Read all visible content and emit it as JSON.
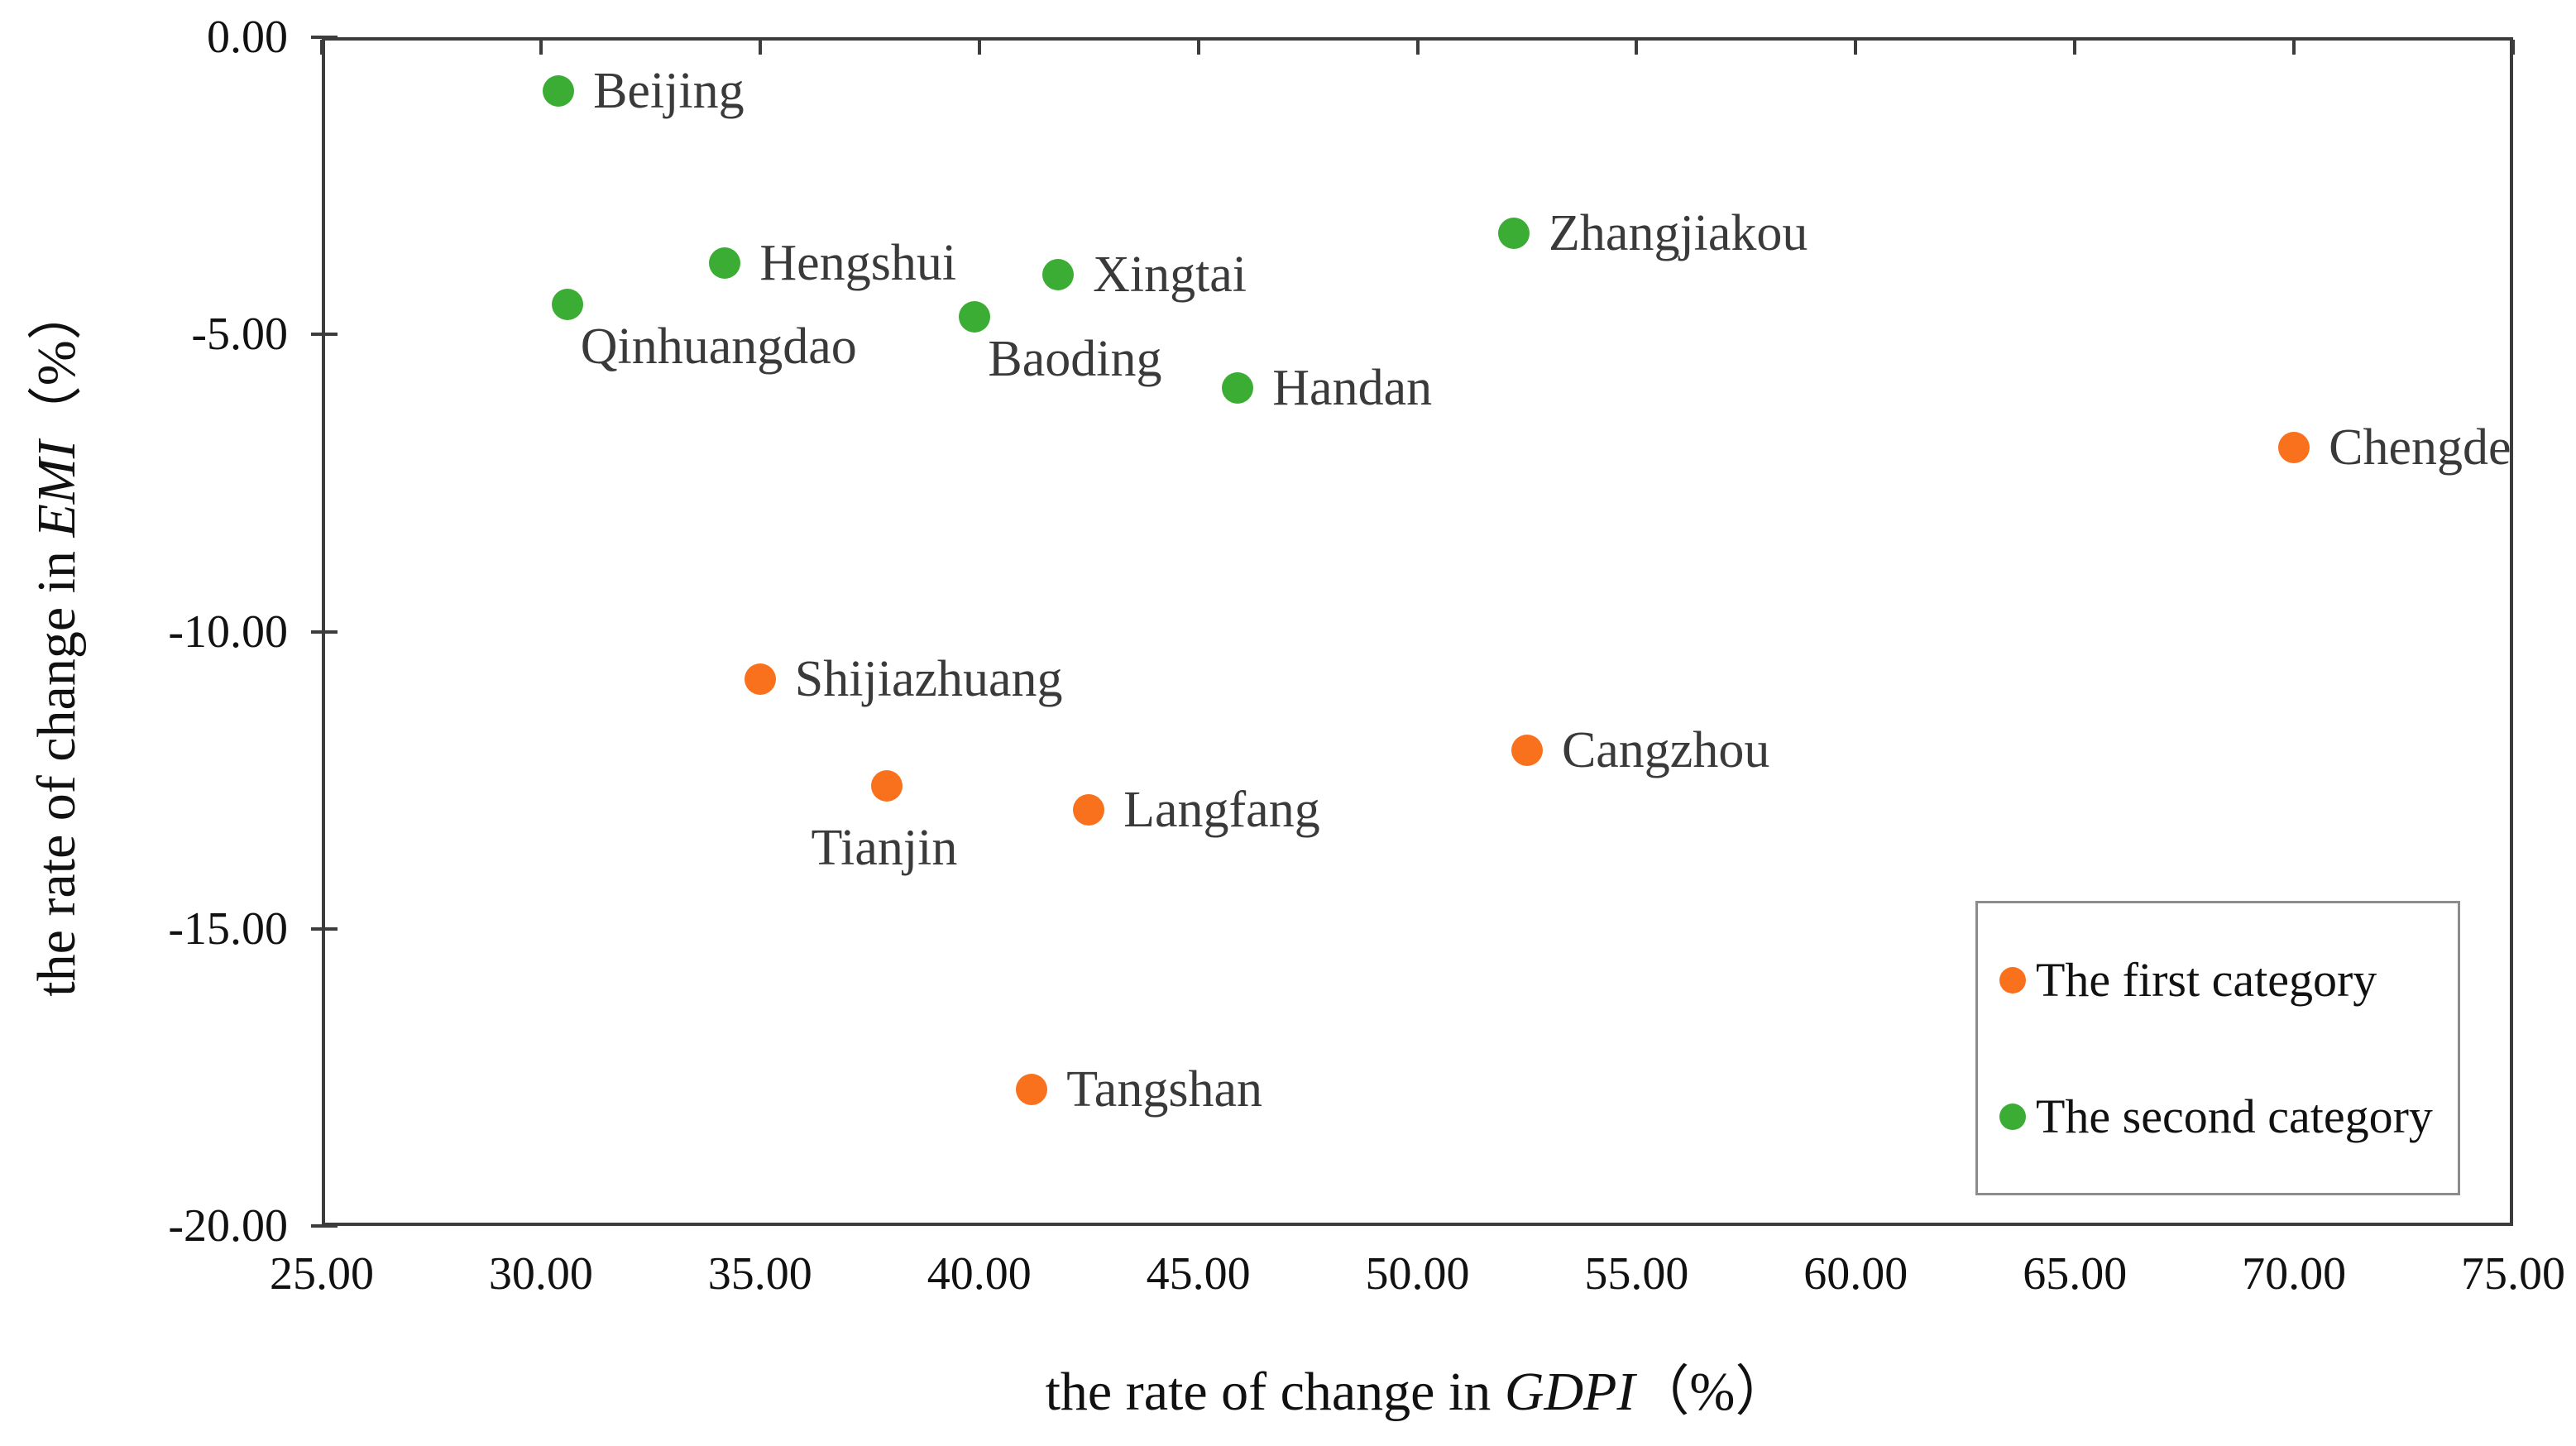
{
  "chart_data": {
    "type": "scatter",
    "title": "",
    "xlabel": {
      "pre": "the rate of change in ",
      "em": "GDPI",
      "post": "（%）"
    },
    "ylabel": {
      "pre": "the rate of change in ",
      "em": "EMI",
      "post": "（%）"
    },
    "xlim": [
      25,
      75
    ],
    "ylim": [
      -20,
      0
    ],
    "x_tick_labels": [
      "25.00",
      "30.00",
      "35.00",
      "40.00",
      "45.00",
      "50.00",
      "55.00",
      "60.00",
      "65.00",
      "70.00",
      "75.00"
    ],
    "y_tick_labels": [
      "0.00",
      "-5.00",
      "-10.00",
      "-15.00",
      "-20.00"
    ],
    "y_tick_values": [
      0,
      -5,
      -10,
      -15,
      -20
    ],
    "grid": false,
    "legend_position": "inside-lower-right",
    "series": [
      {
        "name": "The first category",
        "color": "#F9711D",
        "points": [
          {
            "city": "Chengde",
            "x": 70.0,
            "y": -6.9,
            "label_pos": "right"
          },
          {
            "city": "Shijiazhuang",
            "x": 35.0,
            "y": -10.8,
            "label_pos": "right"
          },
          {
            "city": "Cangzhou",
            "x": 52.5,
            "y": -12.0,
            "label_pos": "right"
          },
          {
            "city": "Tianjin",
            "x": 37.9,
            "y": -12.6,
            "label_pos": "below"
          },
          {
            "city": "Langfang",
            "x": 42.5,
            "y": -13.0,
            "label_pos": "right"
          },
          {
            "city": "Tangshan",
            "x": 41.2,
            "y": -17.7,
            "label_pos": "right"
          }
        ]
      },
      {
        "name": "The second category",
        "color": "#3BAD34",
        "points": [
          {
            "city": "Beijing",
            "x": 30.4,
            "y": -0.9,
            "label_pos": "right"
          },
          {
            "city": "Hengshui",
            "x": 34.2,
            "y": -3.8,
            "label_pos": "right"
          },
          {
            "city": "Xingtai",
            "x": 41.8,
            "y": -4.0,
            "label_pos": "right"
          },
          {
            "city": "Qinhuangdao",
            "x": 30.6,
            "y": -4.5,
            "label_pos": "below-right"
          },
          {
            "city": "Baoding",
            "x": 39.9,
            "y": -4.7,
            "label_pos": "below-right"
          },
          {
            "city": "Handan",
            "x": 45.9,
            "y": -5.9,
            "label_pos": "right"
          },
          {
            "city": "Zhangjiakou",
            "x": 52.2,
            "y": -3.3,
            "label_pos": "right"
          }
        ]
      }
    ],
    "legend": {
      "border_color": "#8C8C8C",
      "items": [
        {
          "label": "The first category",
          "color": "#F9711D"
        },
        {
          "label": "The second category",
          "color": "#3BAD34"
        }
      ]
    },
    "axis_color": "#3C3C3C"
  }
}
